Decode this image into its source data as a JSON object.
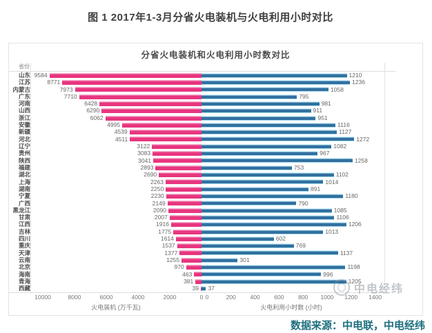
{
  "page": {
    "title": "图 1 2017年1-3月分省火电装机与火电利用小时对比",
    "source": "数据来源：中电联，中电经纬",
    "watermark": "中电经纬"
  },
  "chart_data": {
    "type": "bar",
    "variant": "diverging-horizontal",
    "title": "分省火电装机和火电利用小时数对比",
    "column_header": "省份",
    "categories": [
      "山东",
      "江苏",
      "内蒙古",
      "广东",
      "河南",
      "山西",
      "浙江",
      "安徽",
      "新疆",
      "河北",
      "辽宁",
      "贵州",
      "陕西",
      "福建",
      "湖北",
      "上海",
      "湖南",
      "宁夏",
      "广西",
      "黑龙江",
      "甘肃",
      "江西",
      "吉林",
      "四川",
      "重庆",
      "天津",
      "云南",
      "北京",
      "海南",
      "青海",
      "西藏"
    ],
    "series": [
      {
        "name": "火电装机",
        "unit": "万千瓦",
        "side": "left",
        "color": "#e8357f",
        "values": [
          9584,
          8771,
          7973,
          7710,
          6428,
          6290,
          6062,
          4995,
          4539,
          4511,
          3122,
          3083,
          3041,
          2893,
          2690,
          2263,
          2250,
          2230,
          2149,
          2090,
          2007,
          1916,
          1775,
          1614,
          1537,
          1377,
          1255,
          970,
          463,
          381,
          39
        ]
      },
      {
        "name": "火电利用小时数",
        "unit": "小时",
        "side": "right",
        "color": "#31709f",
        "values": [
          1210,
          1236,
          1058,
          795,
          981,
          911,
          951,
          1116,
          1127,
          1272,
          1082,
          967,
          1258,
          753,
          1102,
          1014,
          891,
          1180,
          790,
          1085,
          1106,
          1206,
          1013,
          602,
          769,
          1137,
          301,
          1198,
          996,
          1205,
          37
        ]
      }
    ],
    "left_axis": {
      "label": "火电装机 (万千瓦)",
      "ticks": [
        10000,
        8000,
        6000,
        4000,
        2000,
        0
      ],
      "range": [
        0,
        10000
      ],
      "direction": "reversed"
    },
    "right_axis": {
      "label": "火电利用小时数 (小时)",
      "ticks": [
        0,
        200,
        400,
        600,
        800,
        1000,
        1200,
        1400
      ],
      "range": [
        0,
        1400
      ]
    },
    "grid": false,
    "legend": "none",
    "colors": {
      "capacity_bar": "#e8357f",
      "hours_bar": "#31709f",
      "source_text": "#1e6f80"
    }
  }
}
